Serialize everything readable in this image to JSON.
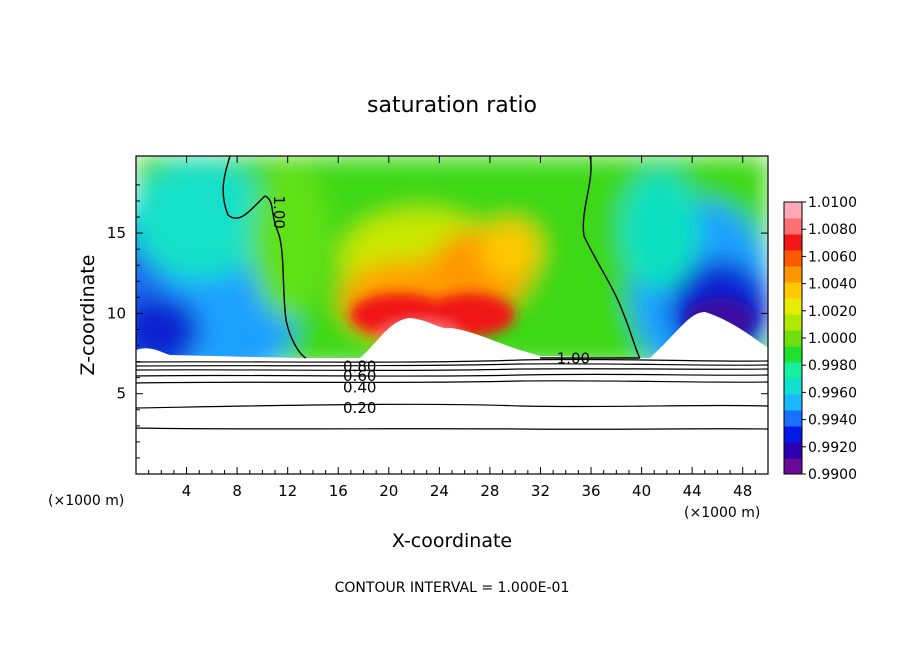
{
  "chart_data": {
    "type": "heatmap",
    "title": "saturation ratio",
    "xlabel": "X-coordinate",
    "ylabel": "Z-coordinate",
    "x_unit_left": "(×1000 m)",
    "x_unit_right": "(×1000 m)",
    "footer": "CONTOUR INTERVAL = 1.000E-01",
    "xlim": [
      0,
      50
    ],
    "ylim": [
      0,
      19.8
    ],
    "x_ticks": [
      4,
      8,
      12,
      16,
      20,
      24,
      28,
      32,
      36,
      40,
      44,
      48
    ],
    "y_ticks": [
      5,
      10,
      15
    ],
    "colorbar": {
      "min": 0.99,
      "max": 1.01,
      "labels": [
        "1.0100",
        "1.0080",
        "1.0060",
        "1.0040",
        "1.0020",
        "1.0000",
        "0.9980",
        "0.9960",
        "0.9940",
        "0.9920",
        "0.9900"
      ],
      "colors": [
        "#6a0a96",
        "#2a00b0",
        "#0018e8",
        "#1870ff",
        "#1ab8ff",
        "#11e0d0",
        "#14f0a0",
        "#22e030",
        "#6ee010",
        "#b0e800",
        "#e8ec00",
        "#ffc800",
        "#ff9600",
        "#ff5a00",
        "#f01818",
        "#ff7070",
        "#ffa8b8"
      ]
    },
    "contour_labels": [
      {
        "text": "1.00",
        "x": 11.3,
        "z": 16.3,
        "rotate": 90
      },
      {
        "text": "1.00",
        "x": 34.6,
        "z": 7.2,
        "rotate": 0
      },
      {
        "text": "0.80",
        "x": 17.7,
        "z": 6.7,
        "rotate": 0
      },
      {
        "text": "0.60",
        "x": 17.7,
        "z": 6.1,
        "rotate": 0
      },
      {
        "text": "0.40",
        "x": 17.7,
        "z": 5.4,
        "rotate": 0
      },
      {
        "text": "0.20",
        "x": 17.7,
        "z": 4.1,
        "rotate": 0
      }
    ]
  }
}
